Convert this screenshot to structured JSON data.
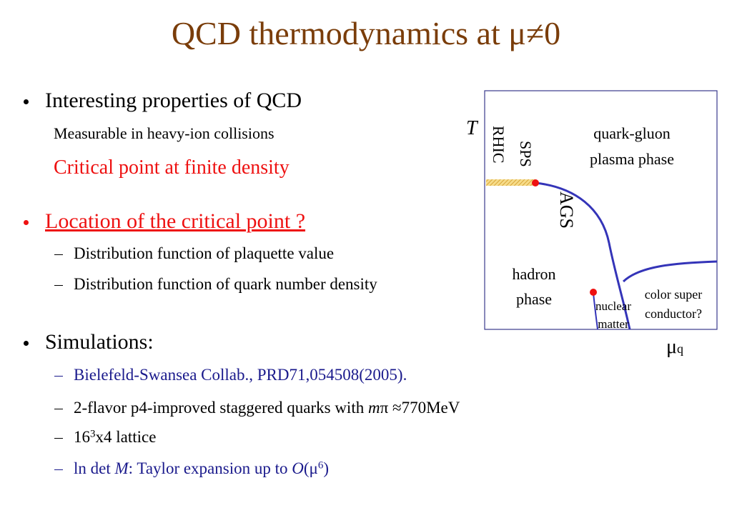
{
  "title": "QCD thermodynamics at μ≠0",
  "bullets": [
    {
      "text": "Interesting properties of QCD",
      "items": [
        [
          "Measurable in heavy-ion collisions"
        ],
        [
          "Critical point at finite density"
        ]
      ]
    },
    {
      "text": "Location of the critical point ?",
      "items": [
        [
          "Distribution function of plaquette value"
        ],
        [
          "Distribution function of quark number density"
        ]
      ]
    },
    {
      "text": "Simulations:",
      "items": [
        [
          "Bielefeld-Swansea Collab., PRD71,054508(2005)."
        ],
        [
          "2-flavor p4-improved staggered quarks with ",
          "m",
          "π ≈770MeV"
        ],
        [
          "16",
          "3",
          "x4 lattice"
        ],
        [
          "ln det ",
          "M",
          ": Taylor expansion up to ",
          "O",
          "(μ",
          "6",
          ")"
        ]
      ]
    }
  ],
  "diagram": {
    "t_axis": "T",
    "sps": "SPS",
    "rhic": "RHIC",
    "qgp_1": "quark-gluon",
    "qgp_2": "plasma phase",
    "ags": "AGS",
    "hadron_1": "hadron",
    "hadron_2": "phase",
    "nuclear_1": "nuclear",
    "nuclear_2": "matter",
    "csc_1": "color super",
    "csc_2": "conductor?",
    "mu": "μ",
    "mu_sub": "q"
  }
}
